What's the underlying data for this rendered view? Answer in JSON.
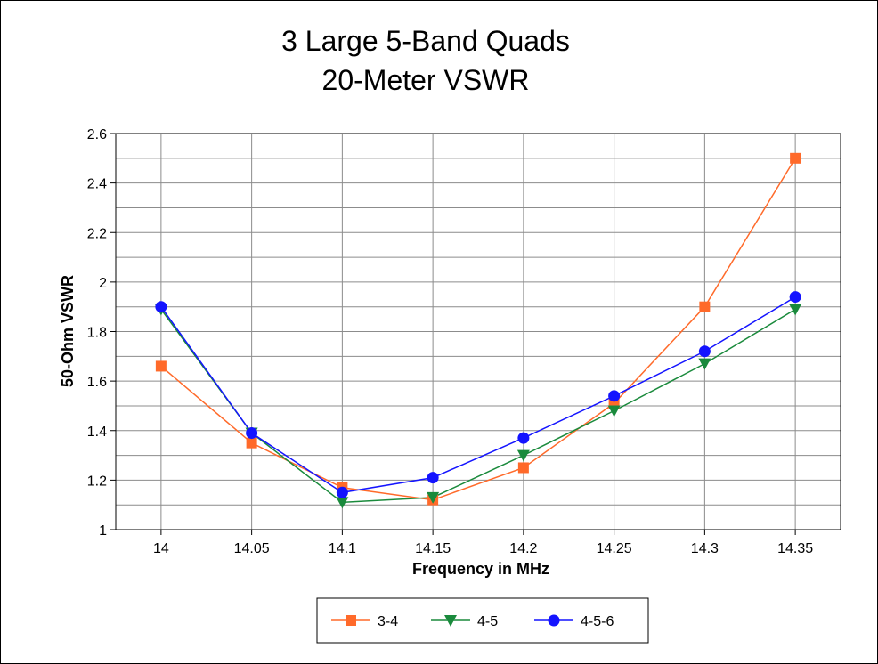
{
  "chart_data": {
    "type": "line",
    "title": [
      "3 Large 5-Band Quads",
      "20-Meter VSWR"
    ],
    "xlabel": "Frequency in MHz",
    "ylabel": "50-Ohm VSWR",
    "categories": [
      "14",
      "14.05",
      "14.1",
      "14.15",
      "14.2",
      "14.25",
      "14.3",
      "14.35"
    ],
    "ylim": [
      1,
      2.6
    ],
    "yticks": [
      "1",
      "1.2",
      "1.4",
      "1.6",
      "1.8",
      "2",
      "2.2",
      "2.4",
      "2.6"
    ],
    "grid": true,
    "legend_position": "bottom",
    "series": [
      {
        "name": "3-4",
        "color": "#ff6a2a",
        "marker": "square",
        "values": [
          1.66,
          1.35,
          1.17,
          1.12,
          1.25,
          1.51,
          1.9,
          2.5
        ]
      },
      {
        "name": "4-5",
        "color": "#1a8a3c",
        "marker": "triangle-down",
        "values": [
          1.89,
          1.39,
          1.11,
          1.13,
          1.3,
          1.48,
          1.67,
          1.89
        ]
      },
      {
        "name": "4-5-6",
        "color": "#1414ff",
        "marker": "circle",
        "values": [
          1.9,
          1.39,
          1.15,
          1.21,
          1.37,
          1.54,
          1.72,
          1.94
        ]
      }
    ]
  }
}
